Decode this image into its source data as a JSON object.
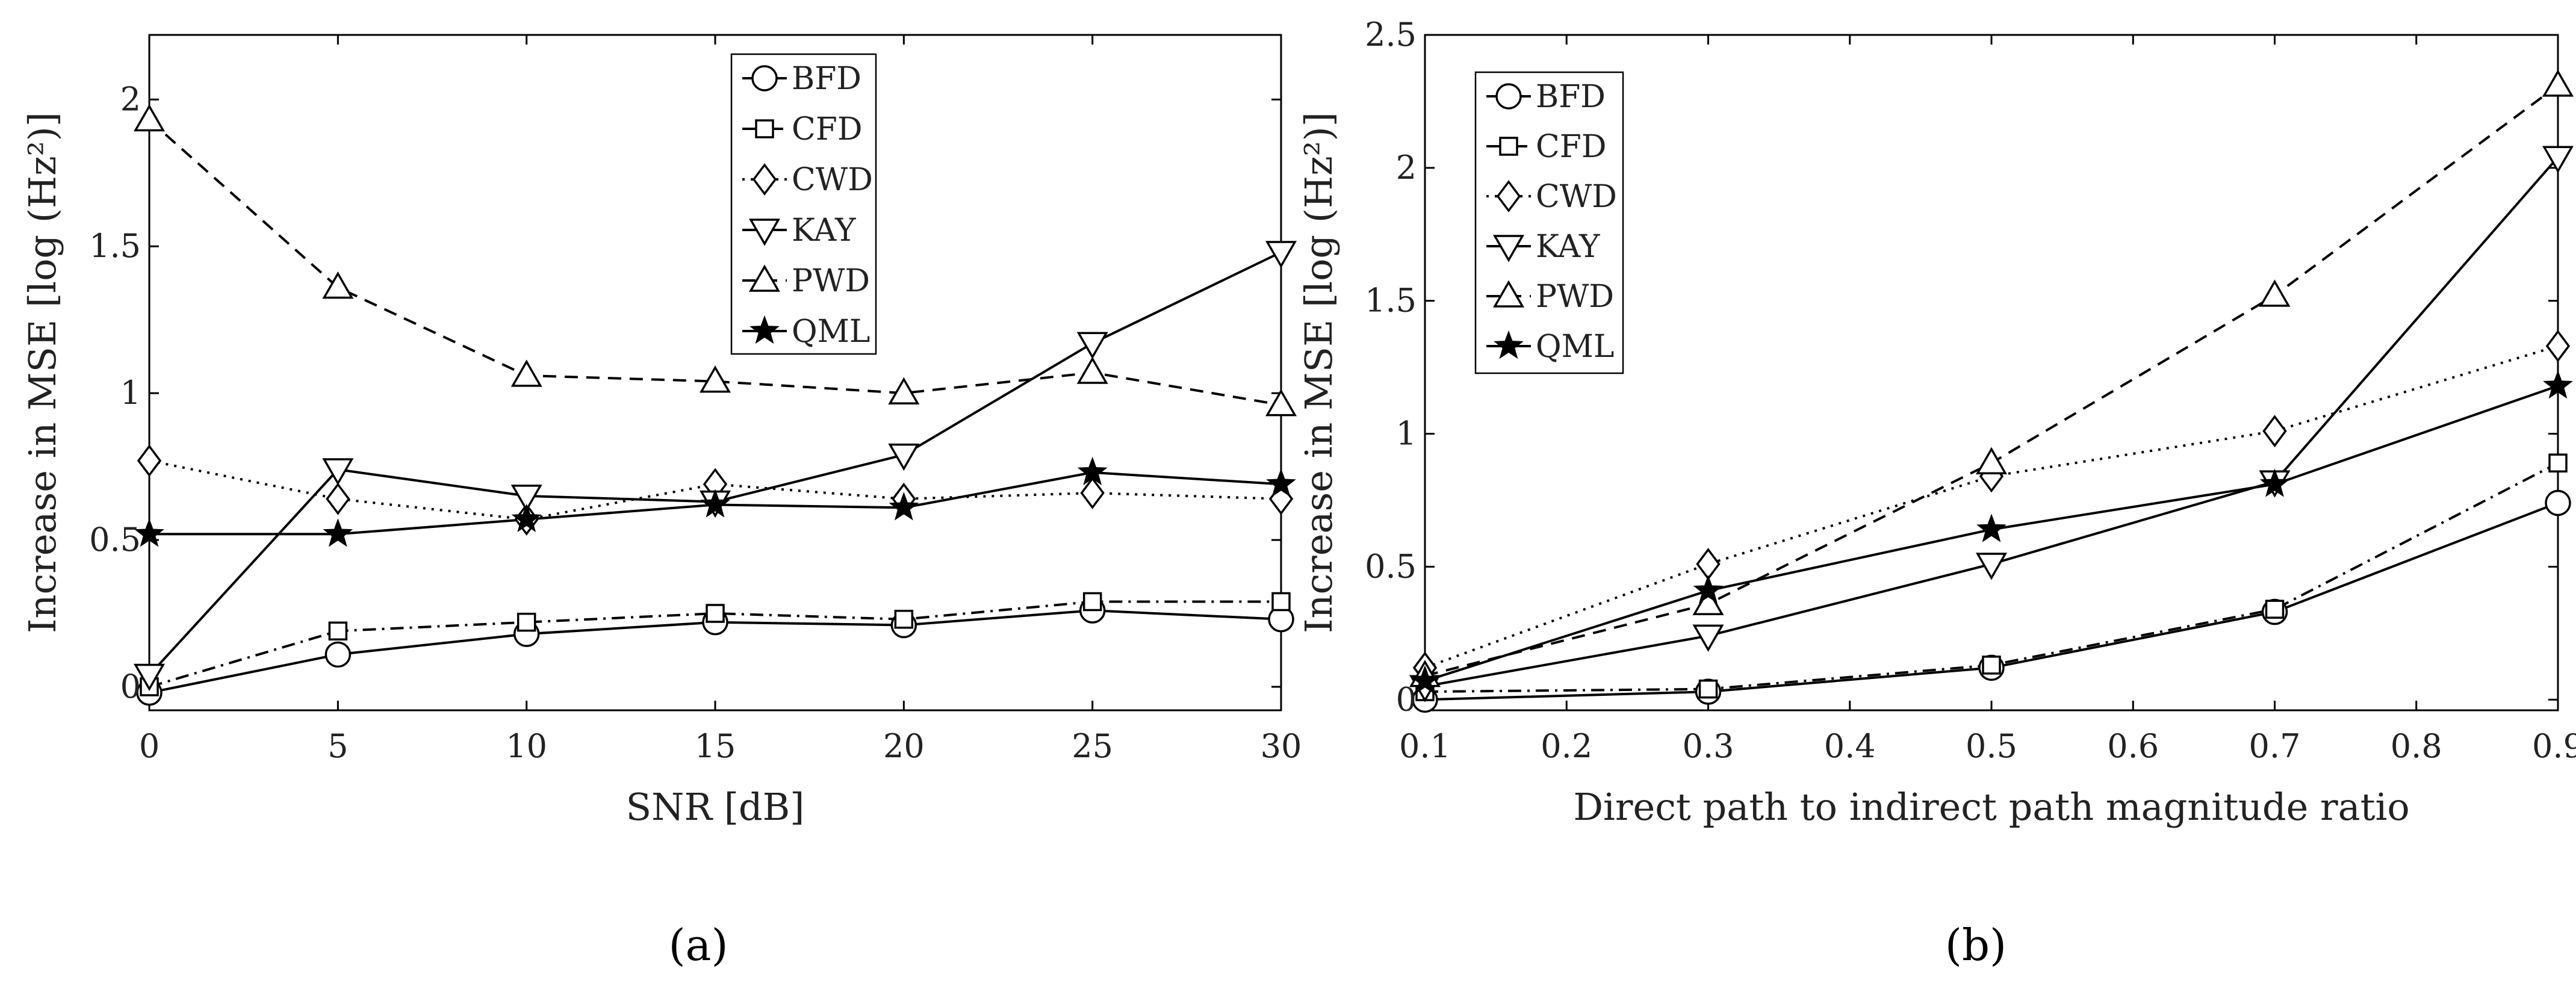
{
  "chart_data": [
    {
      "type": "line",
      "panel_label": "(a)",
      "xlabel": "SNR [dB]",
      "ylabel": "Increase in MSE [log (Hz²)]",
      "xlim": [
        0,
        30
      ],
      "ylim": [
        -0.08,
        2.22
      ],
      "x_ticks": [
        0,
        5,
        10,
        15,
        20,
        25,
        30
      ],
      "y_ticks": [
        0,
        0.5,
        1,
        1.5,
        2
      ],
      "x_tick_labels": [
        "0",
        "5",
        "10",
        "15",
        "20",
        "25",
        "30"
      ],
      "y_tick_labels": [
        "0",
        "0.5",
        "1",
        "1.5",
        "2"
      ],
      "legend_position": "top-center",
      "x": [
        0,
        5,
        10,
        15,
        20,
        25,
        30
      ],
      "series": [
        {
          "name": "BFD",
          "marker": "circle",
          "dash": "solid",
          "values": [
            -0.02,
            0.11,
            0.18,
            0.22,
            0.21,
            0.26,
            0.23
          ]
        },
        {
          "name": "CFD",
          "marker": "square",
          "dash": "dashdot",
          "values": [
            0.0,
            0.19,
            0.22,
            0.25,
            0.23,
            0.29,
            0.29
          ]
        },
        {
          "name": "CWD",
          "marker": "diamond",
          "dash": "dotted",
          "values": [
            0.77,
            0.64,
            0.57,
            0.69,
            0.64,
            0.66,
            0.64
          ]
        },
        {
          "name": "KAY",
          "marker": "triangle-down",
          "dash": "solid",
          "values": [
            0.04,
            0.74,
            0.65,
            0.63,
            0.79,
            1.17,
            1.48
          ]
        },
        {
          "name": "PWD",
          "marker": "triangle-up",
          "dash": "dashed",
          "values": [
            1.93,
            1.36,
            1.06,
            1.04,
            1.0,
            1.07,
            0.96
          ]
        },
        {
          "name": "QML",
          "marker": "star",
          "dash": "solid",
          "values": [
            0.52,
            0.52,
            0.57,
            0.62,
            0.61,
            0.73,
            0.69
          ]
        }
      ]
    },
    {
      "type": "line",
      "panel_label": "(b)",
      "xlabel": "Direct path to indirect path magnitude ratio",
      "ylabel": "Increase in MSE [log (Hz²)]",
      "xlim": [
        0.1,
        0.9
      ],
      "ylim": [
        -0.04,
        2.5
      ],
      "x_ticks": [
        0.1,
        0.2,
        0.3,
        0.4,
        0.5,
        0.6,
        0.7,
        0.8,
        0.9
      ],
      "y_ticks": [
        0,
        0.5,
        1,
        1.5,
        2,
        2.5
      ],
      "x_tick_labels": [
        "0.1",
        "0.2",
        "0.3",
        "0.4",
        "0.5",
        "0.6",
        "0.7",
        "0.8",
        "0.9"
      ],
      "y_tick_labels": [
        "0",
        "0.5",
        "1",
        "1.5",
        "2",
        "2.5"
      ],
      "legend_position": "top-left",
      "x": [
        0.1,
        0.3,
        0.5,
        0.7,
        0.9
      ],
      "series": [
        {
          "name": "BFD",
          "marker": "circle",
          "dash": "solid",
          "values": [
            0.0,
            0.03,
            0.12,
            0.33,
            0.74
          ]
        },
        {
          "name": "CFD",
          "marker": "square",
          "dash": "dashdot",
          "values": [
            0.03,
            0.04,
            0.13,
            0.34,
            0.89
          ]
        },
        {
          "name": "CWD",
          "marker": "diamond",
          "dash": "dotted",
          "values": [
            0.12,
            0.51,
            0.84,
            1.01,
            1.33
          ]
        },
        {
          "name": "KAY",
          "marker": "triangle-down",
          "dash": "solid",
          "values": [
            0.05,
            0.24,
            0.51,
            0.82,
            2.04
          ]
        },
        {
          "name": "PWD",
          "marker": "triangle-up",
          "dash": "dashed",
          "values": [
            0.09,
            0.36,
            0.89,
            1.52,
            2.31
          ]
        },
        {
          "name": "QML",
          "marker": "star",
          "dash": "solid",
          "values": [
            0.07,
            0.41,
            0.64,
            0.81,
            1.18
          ]
        }
      ]
    }
  ]
}
